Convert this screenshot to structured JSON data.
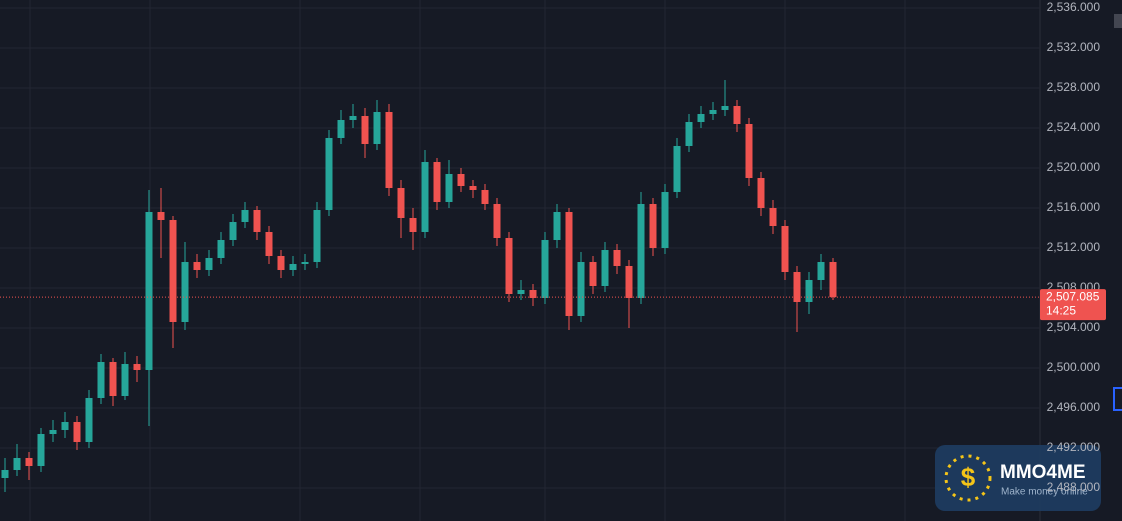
{
  "chart_data": {
    "type": "candlestick",
    "categories": [
      null,
      null,
      null,
      null,
      null,
      null,
      null,
      null,
      null,
      null,
      null,
      null,
      null,
      null,
      null,
      null,
      null,
      null,
      null,
      null,
      null,
      null,
      null,
      null,
      null,
      null,
      null,
      null,
      null,
      null,
      null,
      null,
      null,
      null,
      null,
      null,
      null,
      null,
      null,
      null,
      null,
      null,
      null,
      null,
      null,
      null,
      null,
      null,
      null,
      null,
      null,
      null,
      null,
      null,
      null,
      null,
      null,
      null,
      null,
      null,
      null,
      null,
      null,
      null,
      null,
      null,
      null,
      null,
      null,
      null
    ],
    "open": [
      2489.0,
      2489.8,
      2491.0,
      2490.2,
      2493.4,
      2493.8,
      2494.6,
      2492.6,
      2497.0,
      2500.6,
      2497.2,
      2500.4,
      2499.8,
      2515.6,
      2514.8,
      2504.6,
      2510.6,
      2509.8,
      2511.0,
      2512.8,
      2514.6,
      2515.8,
      2513.6,
      2511.2,
      2509.8,
      2510.4,
      2510.6,
      2515.8,
      2523.0,
      2524.8,
      2525.2,
      2522.4,
      2525.6,
      2518.0,
      2515.0,
      2513.6,
      2520.6,
      2516.6,
      2519.4,
      2518.2,
      2517.8,
      2516.4,
      2513.0,
      2507.4,
      2507.8,
      2507.0,
      2512.8,
      2515.6,
      2505.2,
      2510.6,
      2508.2,
      2511.8,
      2510.2,
      2507.0,
      2516.4,
      2512.0,
      2517.6,
      2522.2,
      2524.6,
      2525.4,
      2525.8,
      2526.2,
      2524.4,
      2519.0,
      2516.0,
      2514.2,
      2509.6,
      2506.6,
      2508.8,
      2510.6
    ],
    "high": [
      2491.0,
      2492.4,
      2491.6,
      2494.0,
      2494.8,
      2495.6,
      2495.2,
      2497.8,
      2501.4,
      2501.0,
      2501.6,
      2501.2,
      2517.8,
      2518.0,
      2515.2,
      2512.6,
      2511.4,
      2511.8,
      2513.6,
      2515.4,
      2516.6,
      2516.2,
      2514.2,
      2511.8,
      2511.2,
      2511.4,
      2516.6,
      2523.8,
      2525.8,
      2526.4,
      2526.0,
      2526.8,
      2526.4,
      2518.8,
      2516.0,
      2521.8,
      2521.0,
      2520.8,
      2520.0,
      2518.8,
      2518.4,
      2517.0,
      2513.6,
      2508.8,
      2508.4,
      2513.6,
      2516.4,
      2516.0,
      2511.6,
      2511.2,
      2512.6,
      2512.4,
      2510.8,
      2517.6,
      2517.0,
      2518.4,
      2523.0,
      2525.4,
      2526.2,
      2526.6,
      2528.8,
      2526.8,
      2525.0,
      2519.6,
      2516.8,
      2514.8,
      2510.2,
      2509.6,
      2511.4,
      2511.0
    ],
    "low": [
      2487.6,
      2489.2,
      2488.8,
      2489.6,
      2492.6,
      2493.0,
      2491.8,
      2492.0,
      2496.4,
      2496.2,
      2496.8,
      2498.6,
      2494.2,
      2511.0,
      2502.0,
      2503.8,
      2509.0,
      2509.2,
      2510.4,
      2512.2,
      2514.0,
      2512.8,
      2510.4,
      2509.0,
      2509.2,
      2509.8,
      2510.0,
      2515.2,
      2522.4,
      2524.0,
      2521.0,
      2521.8,
      2517.2,
      2513.0,
      2511.8,
      2513.0,
      2515.8,
      2516.0,
      2517.6,
      2517.0,
      2515.8,
      2512.2,
      2506.6,
      2506.8,
      2506.2,
      2506.4,
      2512.0,
      2503.8,
      2504.6,
      2507.4,
      2507.6,
      2509.4,
      2504.0,
      2506.4,
      2511.2,
      2511.4,
      2517.0,
      2521.6,
      2524.0,
      2524.8,
      2525.2,
      2523.6,
      2518.2,
      2515.2,
      2513.4,
      2508.8,
      2503.6,
      2505.4,
      2507.8,
      2506.8
    ],
    "close": [
      2489.8,
      2491.0,
      2490.2,
      2493.4,
      2493.8,
      2494.6,
      2492.6,
      2497.0,
      2500.6,
      2497.2,
      2500.4,
      2499.8,
      2515.6,
      2514.8,
      2504.6,
      2510.6,
      2509.8,
      2511.0,
      2512.8,
      2514.6,
      2515.8,
      2513.6,
      2511.2,
      2509.8,
      2510.4,
      2510.6,
      2515.8,
      2523.0,
      2524.8,
      2525.2,
      2522.4,
      2525.6,
      2518.0,
      2515.0,
      2513.6,
      2520.6,
      2516.6,
      2519.4,
      2518.2,
      2517.8,
      2516.4,
      2513.0,
      2507.4,
      2507.8,
      2507.0,
      2512.8,
      2515.6,
      2505.2,
      2510.6,
      2508.2,
      2511.8,
      2510.2,
      2507.0,
      2516.4,
      2512.0,
      2517.6,
      2522.2,
      2524.6,
      2525.4,
      2525.8,
      2526.2,
      2524.4,
      2519.0,
      2516.0,
      2514.2,
      2509.6,
      2506.6,
      2508.8,
      2510.6,
      2507.085
    ],
    "up_color": "#26a69a",
    "down_color": "#ef5350",
    "ylim": [
      2484.7,
      2536.8
    ],
    "yticks": [
      {
        "value": 2488,
        "label": "2,488.000"
      },
      {
        "value": 2492,
        "label": "2,492.000"
      },
      {
        "value": 2496,
        "label": "2,496.000"
      },
      {
        "value": 2500,
        "label": "2,500.000"
      },
      {
        "value": 2504,
        "label": "2,504.000"
      },
      {
        "value": 2508,
        "label": "2,508.000"
      },
      {
        "value": 2512,
        "label": "2,512.000"
      },
      {
        "value": 2516,
        "label": "2,516.000"
      },
      {
        "value": 2520,
        "label": "2,520.000"
      },
      {
        "value": 2524,
        "label": "2,524.000"
      },
      {
        "value": 2528,
        "label": "2,528.000"
      },
      {
        "value": 2532,
        "label": "2,532.000"
      },
      {
        "value": 2536,
        "label": "2,536.000"
      }
    ],
    "grid": true,
    "price_label": {
      "value": 2507.085,
      "label": "2,507.085"
    },
    "countdown": "14:25"
  },
  "watermark": {
    "title": "MMO4ME",
    "subtitle": "Make money online"
  }
}
